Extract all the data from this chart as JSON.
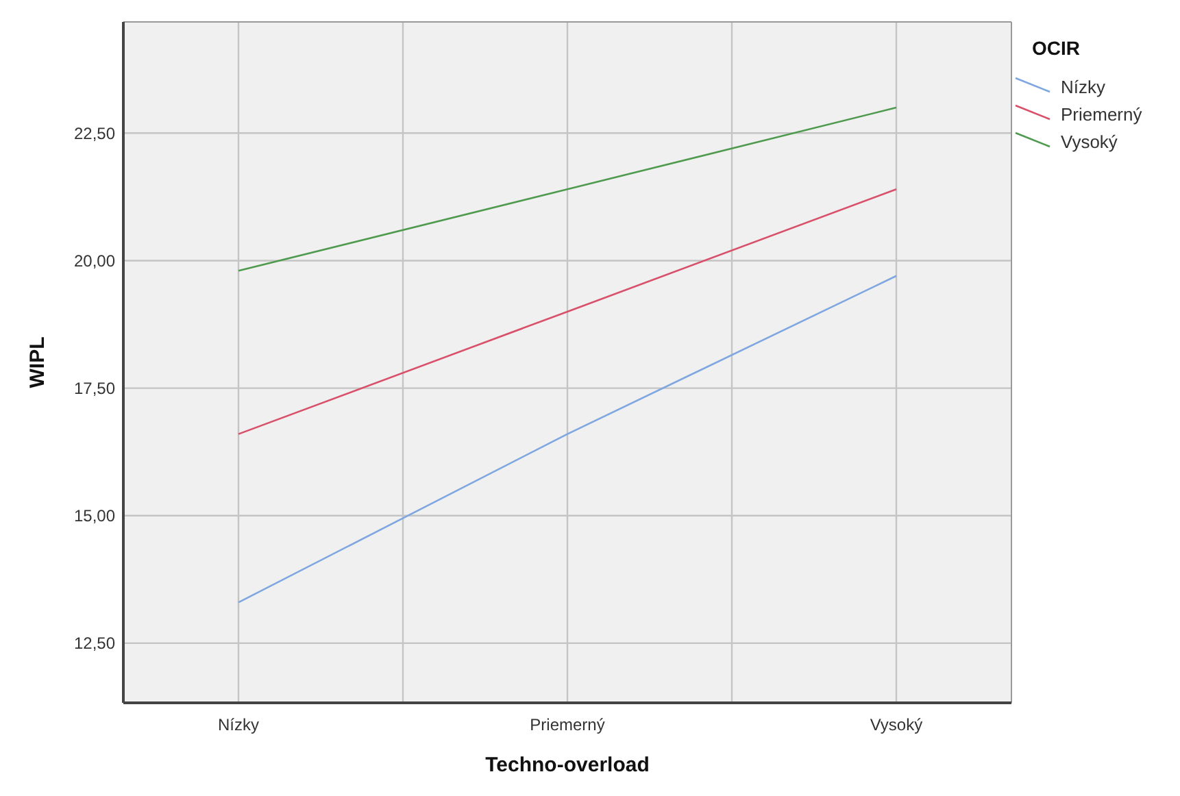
{
  "chart_data": {
    "type": "line",
    "xlabel": "Techno-overload",
    "ylabel": "WIPL",
    "legend_title": "OCIR",
    "legend": "top right",
    "grid": true,
    "categories": [
      "Nízky",
      "Priemerný",
      "Vysoký"
    ],
    "ylim": [
      11.33,
      24.68
    ],
    "yticks": [
      {
        "value": 12.5,
        "label": "12,50"
      },
      {
        "value": 15,
        "label": "15,00"
      },
      {
        "value": 17.5,
        "label": "17,50"
      },
      {
        "value": 20,
        "label": "20,00"
      },
      {
        "value": 22.5,
        "label": "22,50"
      }
    ],
    "series": [
      {
        "name": "Nízky",
        "color": "#7ea6e0",
        "values": [
          13.3,
          16.6,
          19.7
        ]
      },
      {
        "name": "Priemerný",
        "color": "#d9506a",
        "values": [
          16.6,
          19.0,
          21.4
        ]
      },
      {
        "name": "Vysoký",
        "color": "#4f9a4f",
        "values": [
          19.8,
          21.4,
          23.0
        ]
      }
    ]
  }
}
